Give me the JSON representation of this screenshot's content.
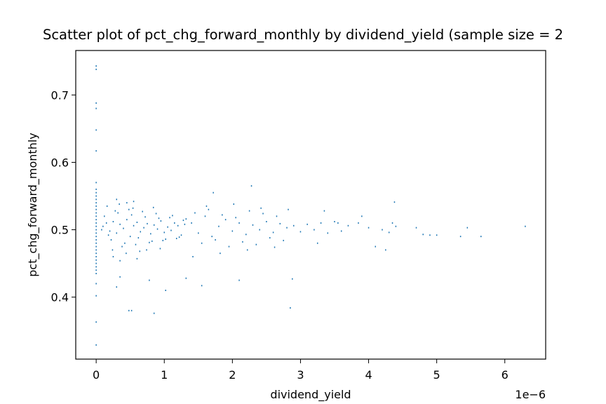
{
  "chart_data": {
    "type": "scatter",
    "title": "Scatter plot of pct_chg_forward_monthly by dividend_yield (sample size = 2",
    "xlabel": "dividend_yield",
    "ylabel": "pct_chg_forward_monthly",
    "x_offset_label": "1e−6",
    "x_scale_exponent": -6,
    "xlim": [
      -0.3,
      6.6
    ],
    "ylim": [
      0.308,
      0.766
    ],
    "x_ticks": [
      0,
      1,
      2,
      3,
      4,
      5,
      6
    ],
    "x_tick_labels": [
      "0",
      "1",
      "2",
      "3",
      "4",
      "5",
      "6"
    ],
    "y_ticks": [
      0.4,
      0.5,
      0.6,
      0.7
    ],
    "y_tick_labels": [
      "0.4",
      "0.5",
      "0.6",
      "0.7"
    ],
    "grid": false,
    "legend": "none",
    "marker_color": "#1f77b4",
    "series": [
      {
        "x": [
          0,
          0,
          0,
          0,
          0,
          0,
          0,
          0,
          0,
          0,
          0,
          0,
          0,
          0,
          0,
          0,
          0,
          0,
          0,
          0,
          0,
          0,
          0,
          0,
          0,
          0,
          0,
          0,
          0,
          0,
          0,
          0,
          0,
          0,
          0,
          0,
          0,
          0.1,
          0.15,
          0.2,
          0.25,
          0.3,
          0.35,
          0.4,
          0.45,
          0.5,
          0.55,
          0.6,
          0.65,
          0.7,
          0.75,
          0.8,
          0.85,
          0.9,
          0.95,
          1.0,
          1.05,
          1.1,
          1.15,
          1.2,
          1.25,
          1.3,
          0.12,
          0.22,
          0.32,
          0.42,
          0.52,
          0.62,
          0.72,
          0.82,
          0.92,
          1.02,
          1.12,
          1.22,
          1.32,
          0.18,
          0.28,
          0.38,
          0.48,
          0.58,
          0.68,
          0.78,
          0.88,
          0.98,
          1.08,
          1.18,
          1.28,
          0.08,
          0.16,
          0.24,
          0.34,
          0.44,
          0.54,
          0.64,
          0.74,
          0.84,
          0.94,
          0.3,
          0.35,
          0.55,
          0.6,
          0.25,
          0.45,
          1.4,
          1.5,
          1.6,
          1.7,
          1.8,
          1.9,
          2.0,
          2.1,
          2.2,
          2.3,
          2.4,
          2.5,
          2.6,
          2.7,
          2.8,
          2.9,
          3.0,
          1.45,
          1.55,
          1.65,
          1.75,
          1.85,
          1.95,
          2.05,
          2.15,
          2.25,
          2.35,
          2.45,
          2.55,
          2.65,
          2.75,
          1.42,
          1.62,
          1.82,
          2.02,
          2.22,
          2.42,
          2.62,
          2.82,
          3.1,
          3.2,
          3.3,
          3.4,
          3.5,
          3.6,
          3.7,
          3.9,
          4.0,
          4.2,
          4.3,
          4.4,
          4.7,
          4.9,
          5.0,
          5.35,
          5.45,
          5.65,
          6.3,
          3.25,
          3.55,
          3.85,
          4.1,
          4.35,
          4.8,
          1.72,
          2.28,
          4.38,
          0.35,
          0.78,
          0.3,
          1.02,
          1.55,
          1.32,
          0.52,
          2.1,
          2.88,
          3.35,
          4.25,
          0.48,
          0.85,
          2.85
        ],
        "y": [
          0.743,
          0.738,
          0.688,
          0.68,
          0.648,
          0.617,
          0.57,
          0.56,
          0.555,
          0.55,
          0.545,
          0.54,
          0.535,
          0.53,
          0.525,
          0.52,
          0.515,
          0.51,
          0.505,
          0.5,
          0.495,
          0.49,
          0.485,
          0.48,
          0.475,
          0.47,
          0.465,
          0.46,
          0.455,
          0.45,
          0.445,
          0.44,
          0.435,
          0.42,
          0.402,
          0.363,
          0.329,
          0.505,
          0.51,
          0.498,
          0.512,
          0.495,
          0.508,
          0.502,
          0.515,
          0.49,
          0.506,
          0.511,
          0.497,
          0.503,
          0.509,
          0.494,
          0.507,
          0.501,
          0.513,
          0.496,
          0.504,
          0.499,
          0.51,
          0.506,
          0.492,
          0.508,
          0.52,
          0.485,
          0.525,
          0.48,
          0.522,
          0.488,
          0.519,
          0.483,
          0.517,
          0.486,
          0.521,
          0.489,
          0.516,
          0.492,
          0.528,
          0.475,
          0.53,
          0.478,
          0.527,
          0.481,
          0.524,
          0.484,
          0.518,
          0.487,
          0.514,
          0.5,
          0.535,
          0.47,
          0.538,
          0.465,
          0.532,
          0.468,
          0.47,
          0.533,
          0.472,
          0.545,
          0.454,
          0.542,
          0.457,
          0.46,
          0.54,
          0.51,
          0.495,
          0.52,
          0.49,
          0.505,
          0.515,
          0.498,
          0.51,
          0.493,
          0.507,
          0.5,
          0.512,
          0.496,
          0.509,
          0.503,
          0.506,
          0.497,
          0.525,
          0.48,
          0.53,
          0.485,
          0.522,
          0.475,
          0.518,
          0.482,
          0.528,
          0.478,
          0.524,
          0.488,
          0.52,
          0.484,
          0.46,
          0.535,
          0.465,
          0.538,
          0.47,
          0.532,
          0.474,
          0.53,
          0.508,
          0.5,
          0.51,
          0.495,
          0.512,
          0.498,
          0.506,
          0.52,
          0.503,
          0.5,
          0.496,
          0.505,
          0.503,
          0.492,
          0.492,
          0.49,
          0.503,
          0.49,
          0.505,
          0.48,
          0.51,
          0.51,
          0.475,
          0.51,
          0.493,
          0.555,
          0.565,
          0.541,
          0.43,
          0.425,
          0.415,
          0.41,
          0.417,
          0.428,
          0.38,
          0.425,
          0.427,
          0.528,
          0.47,
          0.38,
          0.376,
          0.384
        ]
      }
    ]
  }
}
